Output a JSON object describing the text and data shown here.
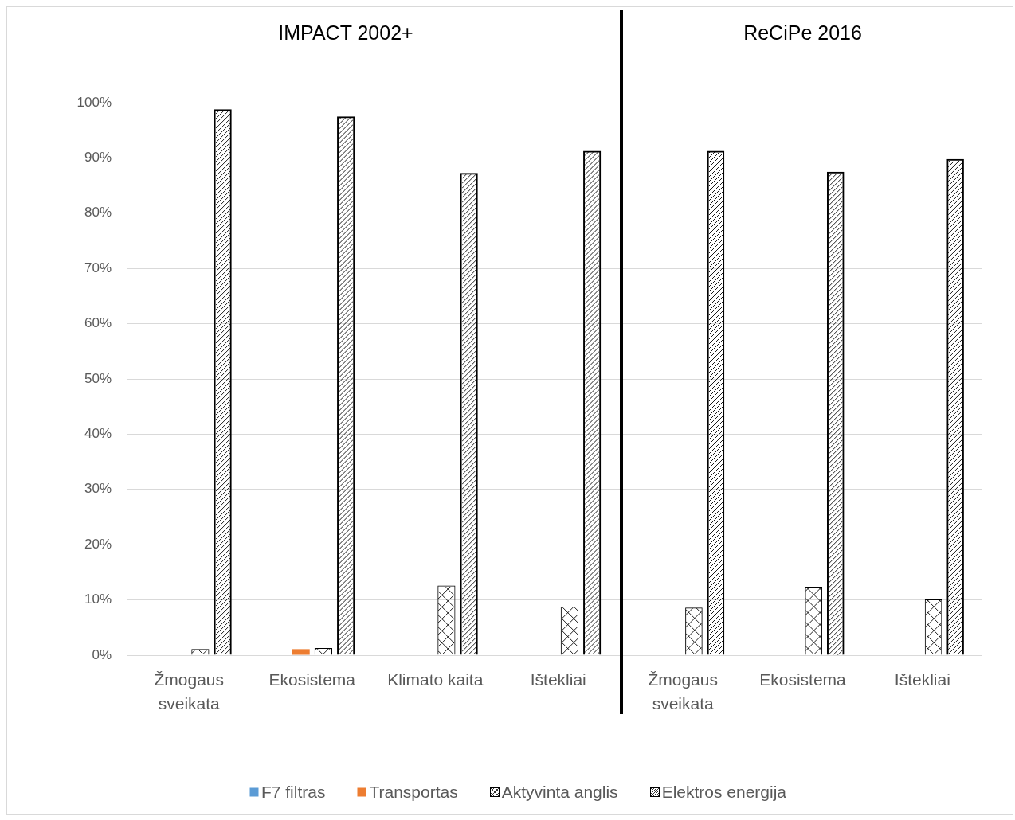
{
  "chart_data": [
    {
      "type": "bar",
      "title": "IMPACT 2002+",
      "categories": [
        "Žmogaus sveikata",
        "Ekosistema",
        "Klimato kaita",
        "Ištekliai"
      ],
      "series": [
        {
          "name": "F7 filtras",
          "color": "#5b9bd5",
          "values": [
            0,
            0,
            0,
            0
          ]
        },
        {
          "name": "Transportas",
          "color": "#ed7d31",
          "values": [
            0,
            1.1,
            0,
            0
          ]
        },
        {
          "name": "Aktyvinta anglis",
          "color": "#000000",
          "values": [
            1.1,
            1.3,
            12.6,
            8.8
          ]
        },
        {
          "name": "Elektros energija",
          "color": "#000000",
          "values": [
            98.8,
            97.5,
            87.3,
            91.3
          ]
        }
      ],
      "ylim": [
        0,
        100
      ],
      "yticks": [
        {
          "value": 0,
          "label": "0%"
        },
        {
          "value": 10,
          "label": "10%"
        },
        {
          "value": 20,
          "label": "20%"
        },
        {
          "value": 30,
          "label": "30%"
        },
        {
          "value": 40,
          "label": "40%"
        },
        {
          "value": 50,
          "label": "50%"
        },
        {
          "value": 60,
          "label": "60%"
        },
        {
          "value": 70,
          "label": "70%"
        },
        {
          "value": 80,
          "label": "80%"
        },
        {
          "value": 90,
          "label": "90%"
        },
        {
          "value": 100,
          "label": "100%"
        }
      ],
      "grid": "y",
      "legend": "bottom"
    },
    {
      "type": "bar",
      "title": "ReCiPe 2016",
      "categories": [
        "Žmogaus sveikata",
        "Ekosistema",
        "Ištekliai"
      ],
      "series": [
        {
          "color": "#5b9bd5",
          "values": [
            0,
            0,
            0
          ]
        },
        {
          "color": "#ed7d31",
          "values": [
            0,
            0,
            0
          ]
        },
        {
          "color": "#000000",
          "values": [
            8.6,
            12.4,
            10.1
          ]
        },
        {
          "color": "#000000",
          "values": [
            91.3,
            87.5,
            89.8
          ]
        }
      ],
      "ylim": [
        0,
        100
      ],
      "yticks": [
        0,
        10,
        20,
        30,
        40,
        50,
        60,
        70,
        80,
        90,
        100
      ],
      "grid": "y",
      "tick_labels": "x"
    }
  ]
}
